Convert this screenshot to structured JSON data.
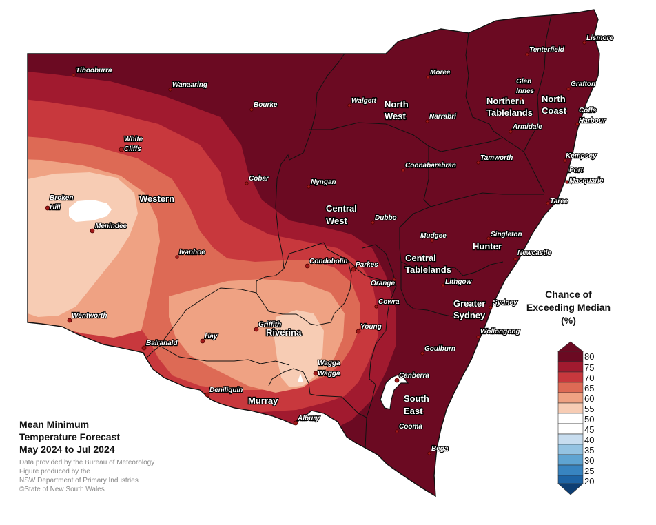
{
  "map": {
    "title_lines": [
      "Mean Minimum",
      "Temperature Forecast",
      "May 2024 to Jul 2024"
    ],
    "credit_lines": [
      "Data provided by the Bureau of Meteorology",
      "Figure produced by the",
      "NSW Department of Primary Industries",
      "©State of New South Wales"
    ],
    "colors": {
      "c80": "#6b0a22",
      "c75": "#a11a2f",
      "c70": "#c8383d",
      "c65": "#dd6a55",
      "c60": "#efa283",
      "c55": "#f7ccb4",
      "c50": "#ffffff",
      "b45": "#c8ddef",
      "b40": "#94c3e2",
      "b35": "#5fa4d2",
      "b30": "#3884c0",
      "b25": "#1d63a4",
      "b20": "#0d3e73",
      "town_dot": "#a11a1a"
    }
  },
  "legend": {
    "title_lines": [
      "Chance of",
      "Exceeding Median",
      "(%)"
    ],
    "ticks": [
      "80",
      "75",
      "70",
      "65",
      "60",
      "55",
      "50",
      "45",
      "40",
      "35",
      "30",
      "25",
      "20"
    ]
  },
  "regions": {
    "western": "Western",
    "north_west": [
      "North",
      "West"
    ],
    "northern_tablelands": [
      "Northern",
      "Tablelands"
    ],
    "north_coast": [
      "North",
      "Coast"
    ],
    "central_west": [
      "Central",
      "West"
    ],
    "hunter": "Hunter",
    "central_tablelands": [
      "Central",
      "Tablelands"
    ],
    "greater_sydney": [
      "Greater",
      "Sydney"
    ],
    "riverina": "Riverina",
    "murray": "Murray",
    "south_east": [
      "South",
      "East"
    ]
  },
  "towns": {
    "tibooburra": "Tibooburra",
    "wanaaring": "Wanaaring",
    "bourke": "Bourke",
    "white_cliffs": [
      "White",
      "Cliffs"
    ],
    "broken_hill": [
      "Broken",
      "Hill"
    ],
    "menindee": "Menindee",
    "cobar": "Cobar",
    "ivanhoe": "Ivanhoe",
    "wentworth": "Wentworth",
    "balranald": "Balranald",
    "hay": "Hay",
    "deniliquin": "Deniliquin",
    "griffith": "Griffith",
    "albury": "Albury",
    "wagga": [
      "Wagga",
      "Wagga"
    ],
    "young": "Young",
    "condobolin": "Condobolin",
    "parkes": "Parkes",
    "orange": "Orange",
    "cowra": "Cowra",
    "nyngan": "Nyngan",
    "dubbo": "Dubbo",
    "walgett": "Walgett",
    "moree": "Moree",
    "narrabri": "Narrabri",
    "coonabarabran": "Coonabarabran",
    "tamworth": "Tamworth",
    "glen_innes": [
      "Glen",
      "Innes"
    ],
    "tenterfield": "Tenterfield",
    "lismore": "Lismore",
    "grafton": "Grafton",
    "armidale": "Armidale",
    "coffs_harbour": [
      "Coffs",
      "Harbour"
    ],
    "kempsey": "Kempsey",
    "port_macquarie": [
      "Port",
      "Macquarie"
    ],
    "taree": "Taree",
    "singleton": "Singleton",
    "newcastle": "Newcastle",
    "mudgee": "Mudgee",
    "lithgow": "Lithgow",
    "sydney": "Sydney",
    "wollongong": "Wollongong",
    "goulburn": "Goulburn",
    "canberra": "Canberra",
    "cooma": "Cooma",
    "bega": "Bega"
  }
}
